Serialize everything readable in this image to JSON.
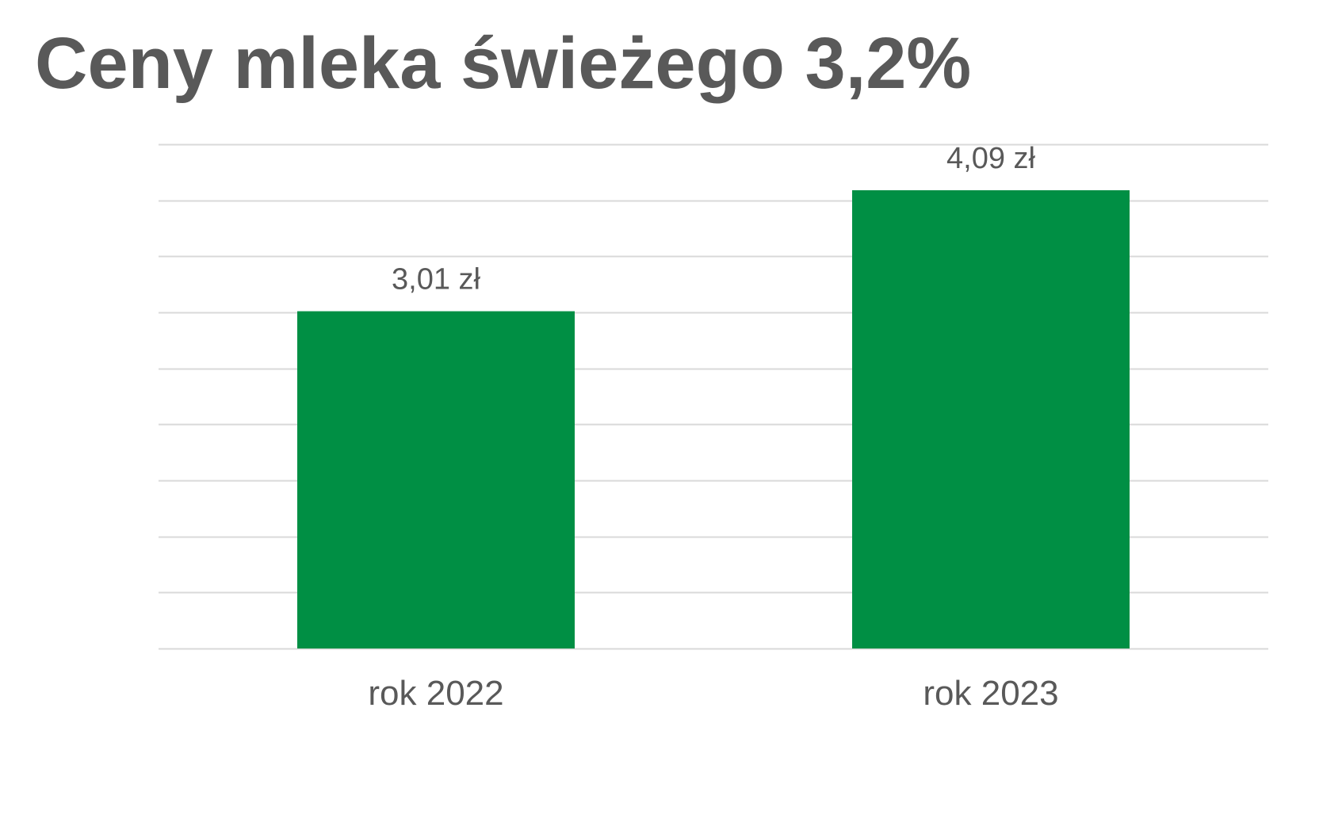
{
  "chart_data": {
    "type": "bar",
    "title": "Ceny mleka świeżego 3,2%",
    "categories": [
      "rok 2022",
      "rok 2023"
    ],
    "values": [
      3.01,
      4.09
    ],
    "data_labels": [
      "3,01 zł",
      "4,09 zł"
    ],
    "xlabel": "",
    "ylabel": "",
    "ylim": [
      0,
      4.5
    ],
    "y_gridline_step": 0.5,
    "grid": true,
    "legend": "none",
    "y_tick_labels_visible": false,
    "bar_color": "#008F44",
    "gridline_color": "#D9D9D9",
    "text_color": "#595959"
  }
}
